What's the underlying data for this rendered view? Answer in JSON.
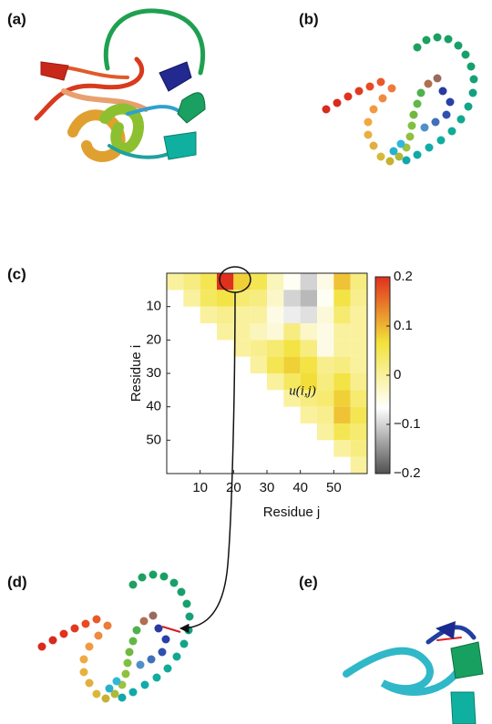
{
  "panel_labels": [
    "(a)",
    "(b)",
    "(c)",
    "(d)",
    "(e)"
  ],
  "chart_data": {
    "type": "heatmap",
    "xlabel": "Residue j",
    "ylabel": "Residue i",
    "annotation": "u(i,j)",
    "x_bins": [
      0,
      5,
      10,
      15,
      20,
      25,
      30,
      35,
      40,
      45,
      50,
      55,
      60
    ],
    "y_bins": [
      0,
      5,
      10,
      15,
      20,
      25,
      30,
      35,
      40,
      45,
      50,
      55,
      60
    ],
    "xlim": [
      0,
      60
    ],
    "ylim": [
      0,
      60
    ],
    "y_inverted": true,
    "xticks": [
      10,
      20,
      30,
      40,
      50
    ],
    "yticks": [
      10,
      20,
      30,
      40,
      50
    ],
    "z": [
      [
        0,
        0.02,
        0.05,
        0.2,
        0.08,
        0.05,
        -0.02,
        -0.06,
        -0.1,
        -0.05,
        0.09,
        0.02
      ],
      [
        null,
        0,
        0.04,
        0.06,
        0.03,
        0.02,
        -0.03,
        -0.1,
        -0.12,
        -0.06,
        0.06,
        0.01
      ],
      [
        null,
        null,
        0,
        0.01,
        0,
        0,
        -0.05,
        -0.08,
        -0.09,
        -0.04,
        0.03,
        0
      ],
      [
        null,
        null,
        null,
        0,
        0,
        -0.02,
        -0.04,
        0.02,
        -0.03,
        -0.05,
        0,
        0
      ],
      [
        null,
        null,
        null,
        null,
        0,
        0.01,
        0.03,
        0.06,
        0.02,
        -0.05,
        0,
        0
      ],
      [
        null,
        null,
        null,
        null,
        null,
        0,
        0.05,
        0.08,
        0.06,
        0.01,
        0.02,
        0
      ],
      [
        null,
        null,
        null,
        null,
        null,
        null,
        0,
        0.04,
        0.07,
        0.02,
        0.06,
        0.01
      ],
      [
        null,
        null,
        null,
        null,
        null,
        null,
        null,
        0,
        0.02,
        0.03,
        0.08,
        0.03
      ],
      [
        null,
        null,
        null,
        null,
        null,
        null,
        null,
        null,
        0,
        0.01,
        0.09,
        0.05
      ],
      [
        null,
        null,
        null,
        null,
        null,
        null,
        null,
        null,
        null,
        0,
        0.05,
        0.03
      ],
      [
        null,
        null,
        null,
        null,
        null,
        null,
        null,
        null,
        null,
        null,
        0,
        0.02
      ],
      [
        null,
        null,
        null,
        null,
        null,
        null,
        null,
        null,
        null,
        null,
        null,
        0
      ]
    ],
    "clim": [
      -0.2,
      0.2
    ],
    "colormap": [
      "#505050",
      "#ffffff",
      "#f2e23a",
      "#e0301e"
    ],
    "cticks": [
      0.2,
      0.1,
      0,
      {
        "value": -0.1,
        "label": "−0.1"
      },
      {
        "value": -0.2,
        "label": "−0.2"
      }
    ]
  }
}
